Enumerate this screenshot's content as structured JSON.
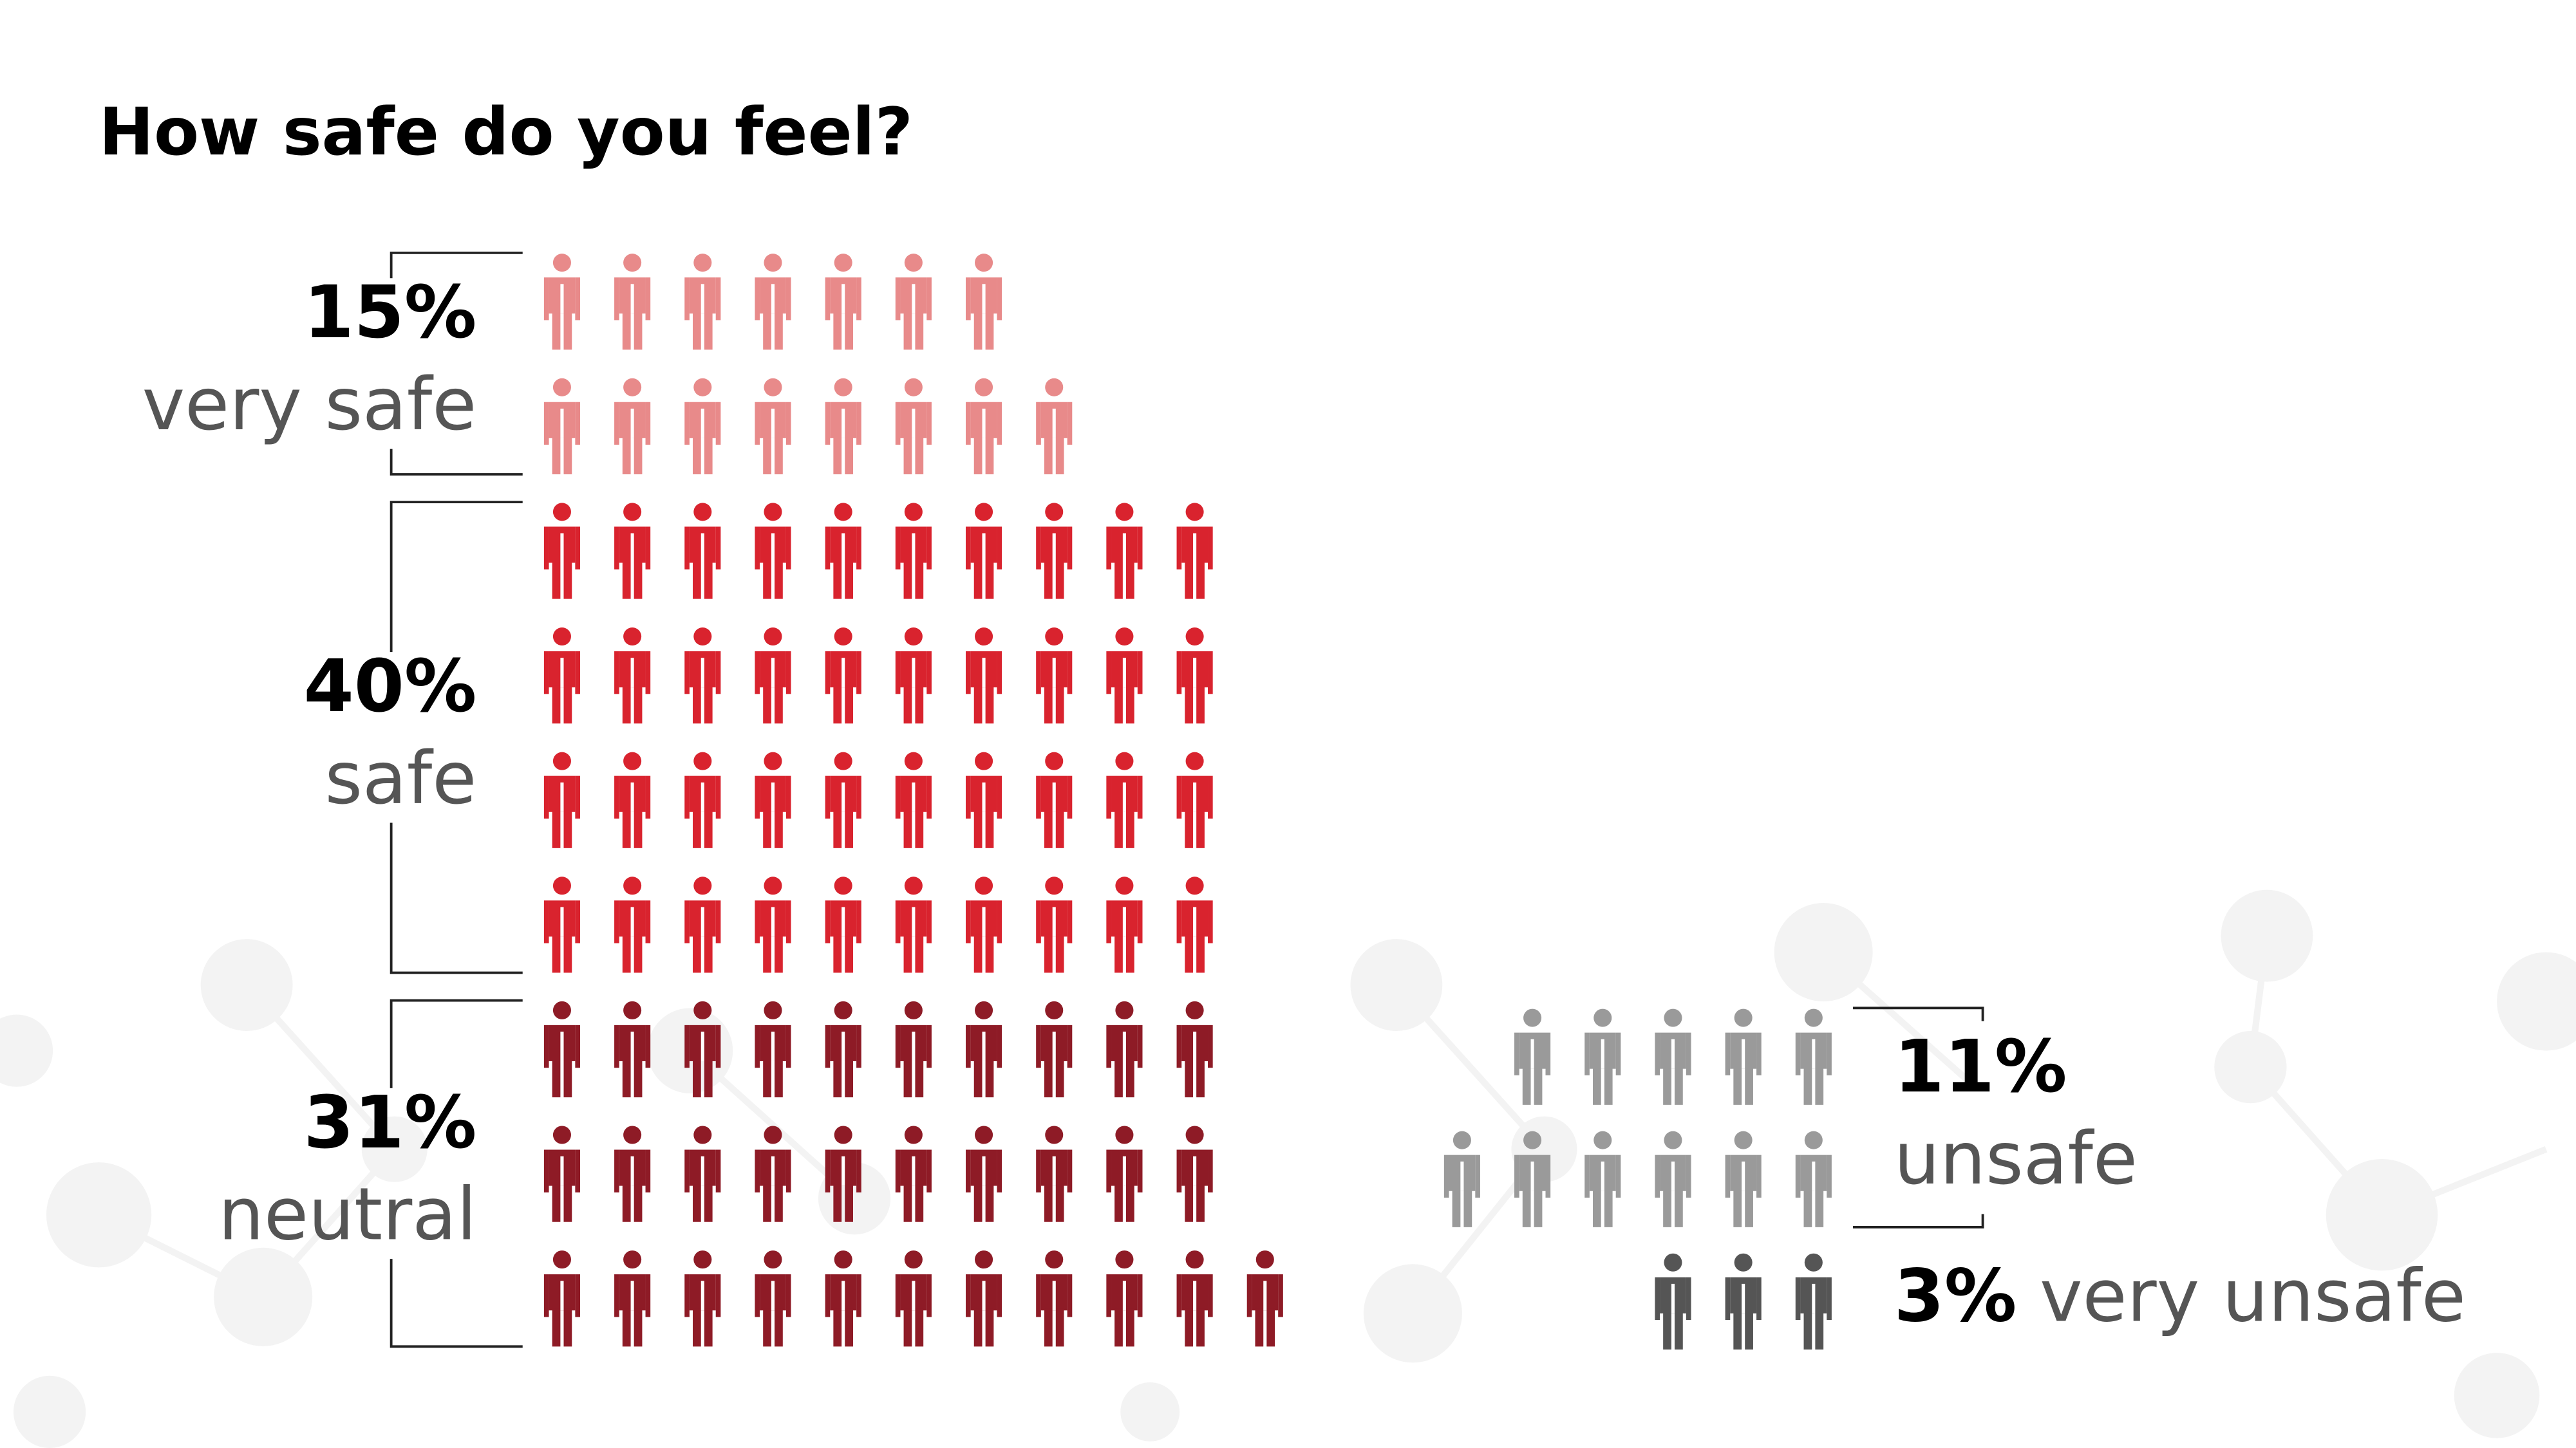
{
  "chart_data": {
    "type": "pictograph",
    "title": "How safe do you feel?",
    "categories": [
      "very safe",
      "safe",
      "neutral",
      "unsafe",
      "very unsafe"
    ],
    "values": [
      15,
      40,
      31,
      11,
      3
    ],
    "value_labels": [
      "15%",
      "40%",
      "31%",
      "11%",
      "3%"
    ],
    "colors": [
      "#e88a8a",
      "#d9232e",
      "#8e1b26",
      "#9a9a9a",
      "#555555"
    ]
  }
}
